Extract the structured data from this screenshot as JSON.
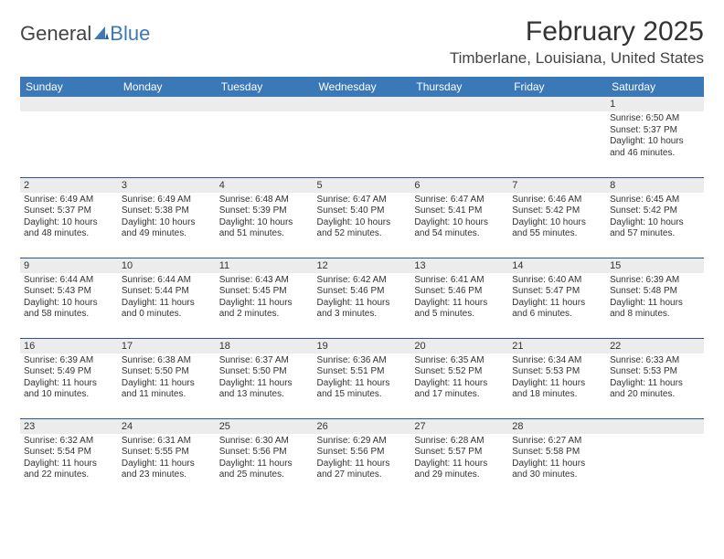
{
  "brand": {
    "part1": "General",
    "part2": "Blue",
    "accent": "#3b78b8",
    "textcolor": "#444444"
  },
  "title": "February 2025",
  "location": "Timberlane, Louisiana, United States",
  "colors": {
    "header_bg": "#3b78b8",
    "header_text": "#ffffff",
    "row_divider": "#2b5a8a",
    "daynum_bg": "#ececec",
    "body_text": "#333333"
  },
  "typography": {
    "title_fontsize": 30,
    "location_fontsize": 17,
    "header_fontsize": 12,
    "daynum_fontsize": 11,
    "body_fontsize": 10
  },
  "weekdays": [
    "Sunday",
    "Monday",
    "Tuesday",
    "Wednesday",
    "Thursday",
    "Friday",
    "Saturday"
  ],
  "weeks": [
    [
      null,
      null,
      null,
      null,
      null,
      null,
      {
        "n": "1",
        "sunrise": "Sunrise: 6:50 AM",
        "sunset": "Sunset: 5:37 PM",
        "daylight": "Daylight: 10 hours and 46 minutes."
      }
    ],
    [
      {
        "n": "2",
        "sunrise": "Sunrise: 6:49 AM",
        "sunset": "Sunset: 5:37 PM",
        "daylight": "Daylight: 10 hours and 48 minutes."
      },
      {
        "n": "3",
        "sunrise": "Sunrise: 6:49 AM",
        "sunset": "Sunset: 5:38 PM",
        "daylight": "Daylight: 10 hours and 49 minutes."
      },
      {
        "n": "4",
        "sunrise": "Sunrise: 6:48 AM",
        "sunset": "Sunset: 5:39 PM",
        "daylight": "Daylight: 10 hours and 51 minutes."
      },
      {
        "n": "5",
        "sunrise": "Sunrise: 6:47 AM",
        "sunset": "Sunset: 5:40 PM",
        "daylight": "Daylight: 10 hours and 52 minutes."
      },
      {
        "n": "6",
        "sunrise": "Sunrise: 6:47 AM",
        "sunset": "Sunset: 5:41 PM",
        "daylight": "Daylight: 10 hours and 54 minutes."
      },
      {
        "n": "7",
        "sunrise": "Sunrise: 6:46 AM",
        "sunset": "Sunset: 5:42 PM",
        "daylight": "Daylight: 10 hours and 55 minutes."
      },
      {
        "n": "8",
        "sunrise": "Sunrise: 6:45 AM",
        "sunset": "Sunset: 5:42 PM",
        "daylight": "Daylight: 10 hours and 57 minutes."
      }
    ],
    [
      {
        "n": "9",
        "sunrise": "Sunrise: 6:44 AM",
        "sunset": "Sunset: 5:43 PM",
        "daylight": "Daylight: 10 hours and 58 minutes."
      },
      {
        "n": "10",
        "sunrise": "Sunrise: 6:44 AM",
        "sunset": "Sunset: 5:44 PM",
        "daylight": "Daylight: 11 hours and 0 minutes."
      },
      {
        "n": "11",
        "sunrise": "Sunrise: 6:43 AM",
        "sunset": "Sunset: 5:45 PM",
        "daylight": "Daylight: 11 hours and 2 minutes."
      },
      {
        "n": "12",
        "sunrise": "Sunrise: 6:42 AM",
        "sunset": "Sunset: 5:46 PM",
        "daylight": "Daylight: 11 hours and 3 minutes."
      },
      {
        "n": "13",
        "sunrise": "Sunrise: 6:41 AM",
        "sunset": "Sunset: 5:46 PM",
        "daylight": "Daylight: 11 hours and 5 minutes."
      },
      {
        "n": "14",
        "sunrise": "Sunrise: 6:40 AM",
        "sunset": "Sunset: 5:47 PM",
        "daylight": "Daylight: 11 hours and 6 minutes."
      },
      {
        "n": "15",
        "sunrise": "Sunrise: 6:39 AM",
        "sunset": "Sunset: 5:48 PM",
        "daylight": "Daylight: 11 hours and 8 minutes."
      }
    ],
    [
      {
        "n": "16",
        "sunrise": "Sunrise: 6:39 AM",
        "sunset": "Sunset: 5:49 PM",
        "daylight": "Daylight: 11 hours and 10 minutes."
      },
      {
        "n": "17",
        "sunrise": "Sunrise: 6:38 AM",
        "sunset": "Sunset: 5:50 PM",
        "daylight": "Daylight: 11 hours and 11 minutes."
      },
      {
        "n": "18",
        "sunrise": "Sunrise: 6:37 AM",
        "sunset": "Sunset: 5:50 PM",
        "daylight": "Daylight: 11 hours and 13 minutes."
      },
      {
        "n": "19",
        "sunrise": "Sunrise: 6:36 AM",
        "sunset": "Sunset: 5:51 PM",
        "daylight": "Daylight: 11 hours and 15 minutes."
      },
      {
        "n": "20",
        "sunrise": "Sunrise: 6:35 AM",
        "sunset": "Sunset: 5:52 PM",
        "daylight": "Daylight: 11 hours and 17 minutes."
      },
      {
        "n": "21",
        "sunrise": "Sunrise: 6:34 AM",
        "sunset": "Sunset: 5:53 PM",
        "daylight": "Daylight: 11 hours and 18 minutes."
      },
      {
        "n": "22",
        "sunrise": "Sunrise: 6:33 AM",
        "sunset": "Sunset: 5:53 PM",
        "daylight": "Daylight: 11 hours and 20 minutes."
      }
    ],
    [
      {
        "n": "23",
        "sunrise": "Sunrise: 6:32 AM",
        "sunset": "Sunset: 5:54 PM",
        "daylight": "Daylight: 11 hours and 22 minutes."
      },
      {
        "n": "24",
        "sunrise": "Sunrise: 6:31 AM",
        "sunset": "Sunset: 5:55 PM",
        "daylight": "Daylight: 11 hours and 23 minutes."
      },
      {
        "n": "25",
        "sunrise": "Sunrise: 6:30 AM",
        "sunset": "Sunset: 5:56 PM",
        "daylight": "Daylight: 11 hours and 25 minutes."
      },
      {
        "n": "26",
        "sunrise": "Sunrise: 6:29 AM",
        "sunset": "Sunset: 5:56 PM",
        "daylight": "Daylight: 11 hours and 27 minutes."
      },
      {
        "n": "27",
        "sunrise": "Sunrise: 6:28 AM",
        "sunset": "Sunset: 5:57 PM",
        "daylight": "Daylight: 11 hours and 29 minutes."
      },
      {
        "n": "28",
        "sunrise": "Sunrise: 6:27 AM",
        "sunset": "Sunset: 5:58 PM",
        "daylight": "Daylight: 11 hours and 30 minutes."
      },
      null
    ]
  ]
}
